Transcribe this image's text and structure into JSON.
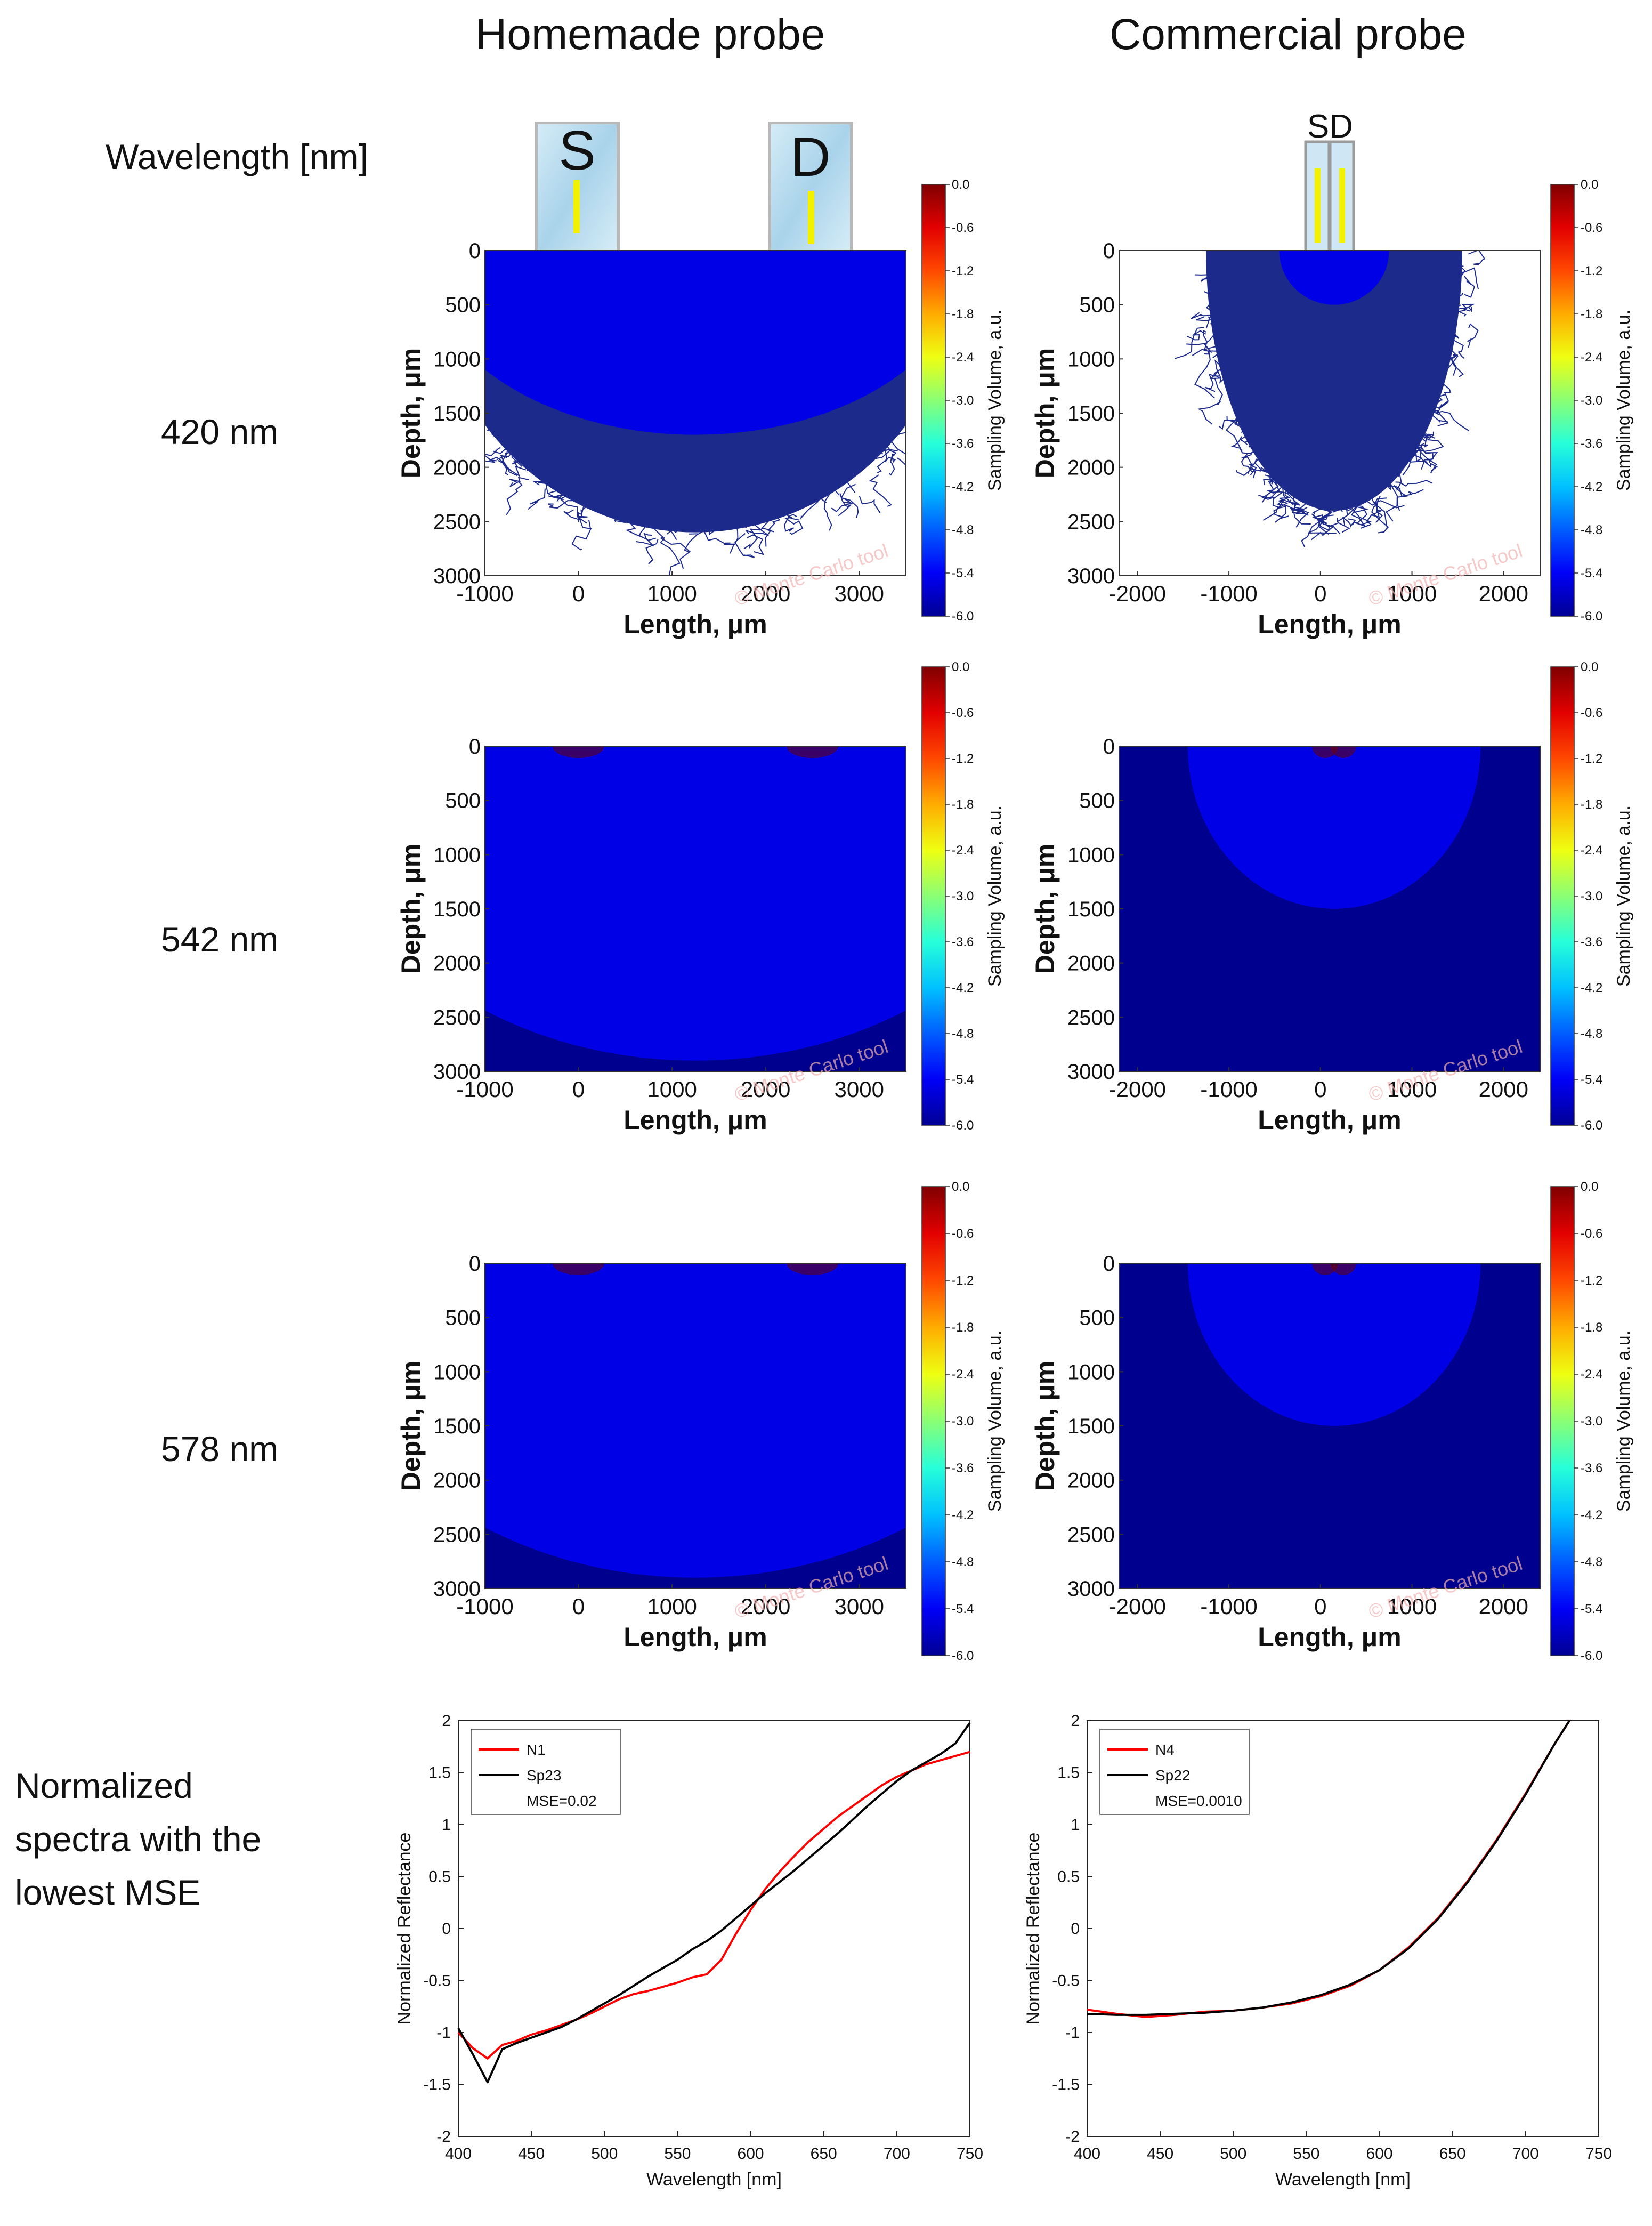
{
  "headers": {
    "homemade": "Homemade probe",
    "commercial": "Commercial probe",
    "wavelength_label": "Wavelength [nm]",
    "normalized_label_lines": [
      "Normalized",
      "spectra with the",
      "lowest MSE"
    ]
  },
  "probe_labels": {
    "source": "S",
    "detector": "D",
    "sd": "SD"
  },
  "rows": [
    "420 nm",
    "542 nm",
    "578 nm"
  ],
  "watermark": "© Monte Carlo tool",
  "colors": {
    "deep_blue": "#00008f",
    "noise": "#1c2a8c",
    "series_red": "#ff0000",
    "series_black": "#000000"
  },
  "colorbar": {
    "label": "Sampling Volume, a.u.",
    "ticks": [
      "0.0",
      "-0.6",
      "-1.2",
      "-1.8",
      "-2.4",
      "-3.0",
      "-3.6",
      "-4.2",
      "-4.8",
      "-5.4",
      "-6.0"
    ],
    "range": [
      -6.0,
      0.0
    ]
  },
  "chart_data": [
    {
      "type": "heatmap",
      "id": "homemade-420",
      "panel": "Homemade probe",
      "wavelength": "420 nm",
      "xlabel": "Length, μm",
      "ylabel": "Depth, μm",
      "xlim": [
        -1000,
        3500
      ],
      "ylim": [
        0,
        3000
      ],
      "xticks": [
        "-1000",
        "0",
        "1000",
        "2000",
        "3000"
      ],
      "yticks": [
        "0",
        "500",
        "1000",
        "1500",
        "2000",
        "2500",
        "3000"
      ],
      "source_x": 0,
      "detector_x": 2500,
      "core_radius": 950,
      "full_radius": 1700,
      "noise_depth": 2600
    },
    {
      "type": "heatmap",
      "id": "commercial-420",
      "panel": "Commercial probe",
      "wavelength": "420 nm",
      "xlabel": "Length, μm",
      "ylabel": "Depth, μm",
      "xlim": [
        -2200,
        2400
      ],
      "ylim": [
        0,
        3000
      ],
      "xticks": [
        "-2000",
        "-1000",
        "0",
        "1000",
        "2000"
      ],
      "yticks": [
        "0",
        "500",
        "1000",
        "1500",
        "2000",
        "2500",
        "3000"
      ],
      "source_x": 50,
      "detector_x": 250,
      "core_radius": 300,
      "full_radius": 500,
      "noise_depth": 2400
    },
    {
      "type": "heatmap",
      "id": "homemade-542",
      "panel": "Homemade probe",
      "wavelength": "542 nm",
      "xlabel": "Length, μm",
      "ylabel": "Depth, μm",
      "xlim": [
        -1000,
        3500
      ],
      "ylim": [
        0,
        3000
      ],
      "xticks": [
        "-1000",
        "0",
        "1000",
        "2000",
        "3000"
      ],
      "yticks": [
        "0",
        "500",
        "1000",
        "1500",
        "2000",
        "2500",
        "3000"
      ],
      "source_x": 0,
      "detector_x": 2500,
      "core_radius": 1600,
      "full_radius": 2900
    },
    {
      "type": "heatmap",
      "id": "commercial-542",
      "panel": "Commercial probe",
      "wavelength": "542 nm",
      "xlabel": "Length, μm",
      "ylabel": "Depth, μm",
      "xlim": [
        -2200,
        2400
      ],
      "ylim": [
        0,
        3000
      ],
      "xticks": [
        "-2000",
        "-1000",
        "0",
        "1000",
        "2000"
      ],
      "yticks": [
        "0",
        "500",
        "1000",
        "1500",
        "2000",
        "2500",
        "3000"
      ],
      "source_x": 50,
      "detector_x": 250,
      "core_radius": 550,
      "full_radius": 1500
    },
    {
      "type": "heatmap",
      "id": "homemade-578",
      "panel": "Homemade probe",
      "wavelength": "578 nm",
      "xlabel": "Length, μm",
      "ylabel": "Depth, μm",
      "xlim": [
        -1000,
        3500
      ],
      "ylim": [
        0,
        3000
      ],
      "xticks": [
        "-1000",
        "0",
        "1000",
        "2000",
        "3000"
      ],
      "yticks": [
        "0",
        "500",
        "1000",
        "1500",
        "2000",
        "2500",
        "3000"
      ],
      "source_x": 0,
      "detector_x": 2500,
      "core_radius": 1500,
      "full_radius": 2900
    },
    {
      "type": "heatmap",
      "id": "commercial-578",
      "panel": "Commercial probe",
      "wavelength": "578 nm",
      "xlabel": "Length, μm",
      "ylabel": "Depth, μm",
      "xlim": [
        -2200,
        2400
      ],
      "ylim": [
        0,
        3000
      ],
      "xticks": [
        "-2000",
        "-1000",
        "0",
        "1000",
        "2000"
      ],
      "yticks": [
        "0",
        "500",
        "1000",
        "1500",
        "2000",
        "2500",
        "3000"
      ],
      "source_x": 50,
      "detector_x": 250,
      "core_radius": 550,
      "full_radius": 1500
    },
    {
      "type": "line",
      "id": "spectra-homemade",
      "xlabel": "Wavelength [nm]",
      "ylabel": "Normalized Reflectance",
      "xlim": [
        400,
        750
      ],
      "ylim": [
        -2,
        2
      ],
      "xticks": [
        "400",
        "450",
        "500",
        "550",
        "600",
        "650",
        "700",
        "750"
      ],
      "yticks": [
        "2",
        "1.5",
        "1",
        "0.5",
        "0",
        "-0.5",
        "-1",
        "-1.5",
        "-2"
      ],
      "legend": "top-left",
      "annotation": "MSE=0.02",
      "series": [
        {
          "name": "N1",
          "color": "#ff0000",
          "x": [
            400,
            410,
            420,
            430,
            440,
            450,
            460,
            470,
            480,
            490,
            500,
            510,
            520,
            530,
            540,
            550,
            560,
            570,
            580,
            590,
            600,
            610,
            620,
            630,
            640,
            650,
            660,
            670,
            680,
            690,
            700,
            710,
            720,
            730,
            740,
            750
          ],
          "y": [
            -1.0,
            -1.15,
            -1.25,
            -1.12,
            -1.08,
            -1.02,
            -0.98,
            -0.93,
            -0.88,
            -0.82,
            -0.75,
            -0.68,
            -0.63,
            -0.6,
            -0.56,
            -0.52,
            -0.47,
            -0.44,
            -0.3,
            -0.05,
            0.18,
            0.38,
            0.55,
            0.7,
            0.84,
            0.96,
            1.08,
            1.18,
            1.28,
            1.38,
            1.46,
            1.52,
            1.58,
            1.62,
            1.66,
            1.7
          ]
        },
        {
          "name": "Sp23",
          "color": "#000000",
          "x": [
            400,
            410,
            420,
            430,
            440,
            450,
            460,
            470,
            480,
            490,
            500,
            510,
            520,
            530,
            540,
            550,
            560,
            570,
            580,
            590,
            600,
            610,
            620,
            630,
            640,
            650,
            660,
            670,
            680,
            690,
            700,
            710,
            720,
            730,
            740,
            750
          ],
          "y": [
            -1.0,
            -1.3,
            -1.5,
            -1.15,
            -1.1,
            -1.05,
            -1.0,
            -0.95,
            -0.88,
            -0.8,
            -0.72,
            -0.64,
            -0.55,
            -0.46,
            -0.38,
            -0.3,
            -0.2,
            -0.12,
            -0.02,
            0.1,
            0.22,
            0.34,
            0.45,
            0.56,
            0.68,
            0.8,
            0.92,
            1.05,
            1.18,
            1.3,
            1.42,
            1.52,
            1.6,
            1.68,
            1.78,
            1.98
          ]
        }
      ]
    },
    {
      "type": "line",
      "id": "spectra-commercial",
      "xlabel": "Wavelength [nm]",
      "ylabel": "Normalized Reflectance",
      "xlim": [
        400,
        750
      ],
      "ylim": [
        -2,
        2
      ],
      "xticks": [
        "400",
        "450",
        "500",
        "550",
        "600",
        "650",
        "700",
        "750"
      ],
      "yticks": [
        "2",
        "1.5",
        "1",
        "0.5",
        "0",
        "-0.5",
        "-1",
        "-1.5",
        "-2"
      ],
      "legend": "top-left",
      "annotation": "MSE=0.0010",
      "series": [
        {
          "name": "N4",
          "color": "#ff0000",
          "x": [
            400,
            420,
            440,
            460,
            480,
            500,
            520,
            540,
            560,
            580,
            600,
            620,
            640,
            660,
            680,
            700,
            720,
            730
          ],
          "y": [
            -0.78,
            -0.82,
            -0.85,
            -0.83,
            -0.8,
            -0.79,
            -0.76,
            -0.72,
            -0.65,
            -0.55,
            -0.4,
            -0.18,
            0.1,
            0.45,
            0.85,
            1.3,
            1.78,
            2.0
          ]
        },
        {
          "name": "Sp22",
          "color": "#000000",
          "x": [
            400,
            420,
            440,
            460,
            480,
            500,
            520,
            540,
            560,
            580,
            600,
            620,
            640,
            660,
            680,
            700,
            720,
            730
          ],
          "y": [
            -0.82,
            -0.83,
            -0.83,
            -0.82,
            -0.81,
            -0.79,
            -0.76,
            -0.71,
            -0.64,
            -0.54,
            -0.4,
            -0.19,
            0.09,
            0.44,
            0.84,
            1.29,
            1.78,
            2.0
          ]
        }
      ]
    }
  ]
}
